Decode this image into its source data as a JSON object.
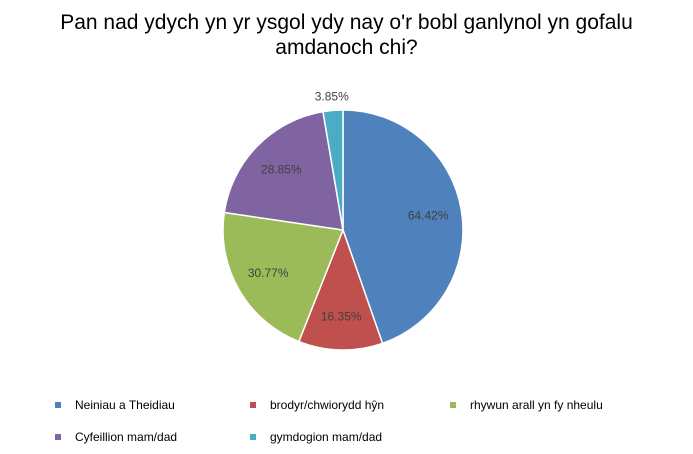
{
  "chart_data": {
    "type": "pie",
    "title": "Pan nad ydych yn yr ysgol ydy nay o'r bobl ganlynol yn gofalu amdanoch chi?",
    "slices": [
      {
        "name": "Neiniau a Theidiau",
        "value": 64.42,
        "label": "64.42%",
        "color": "#4F81BD"
      },
      {
        "name": "brodyr/chwiorydd hŷn",
        "value": 16.35,
        "label": "16.35%",
        "color": "#C0504D"
      },
      {
        "name": "rhywun arall yn fy nheulu",
        "value": 30.77,
        "label": "30.77%",
        "color": "#9BBB59"
      },
      {
        "name": "Cyfeillion mam/dad",
        "value": 28.85,
        "label": "28.85%",
        "color": "#8064A2"
      },
      {
        "name": "gymdogion mam/dad",
        "value": 3.85,
        "label": "3.85%",
        "color": "#4BACC6"
      }
    ],
    "legend_position": "bottom"
  }
}
